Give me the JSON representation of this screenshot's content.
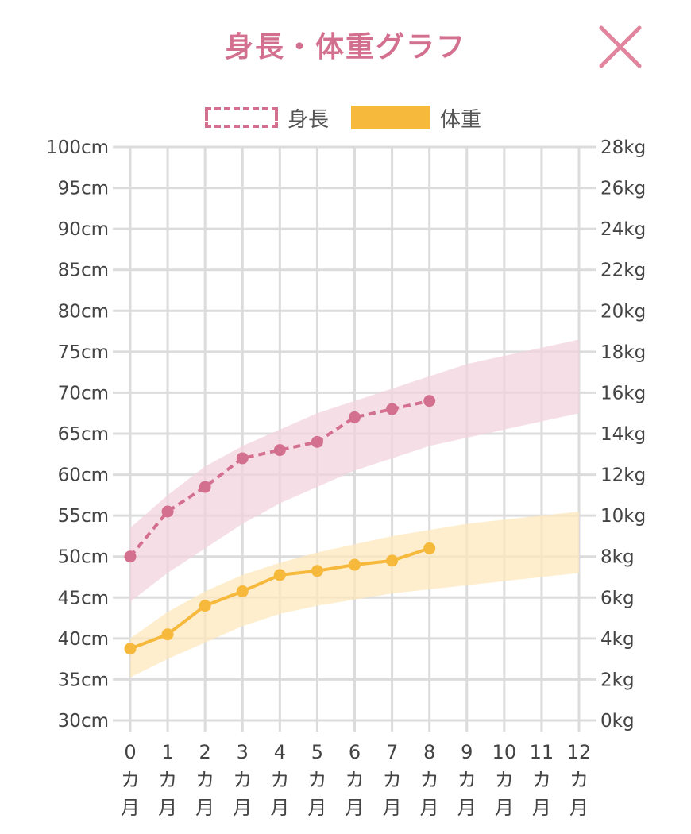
{
  "header": {
    "title": "身長・体重グラフ"
  },
  "colors": {
    "title": "#d4708f",
    "close": "#e1849d",
    "height_line": "#d4708f",
    "height_band": "#f3d3df",
    "weight_line": "#f6b93c",
    "weight_band": "#fde8bd",
    "grid": "#dcdcdc"
  },
  "legend": {
    "height_label": "身長",
    "weight_label": "体重"
  },
  "chart_data": {
    "type": "line",
    "grid": true,
    "legend_position": "top-center",
    "x": [
      0,
      1,
      2,
      3,
      4,
      5,
      6,
      7,
      8,
      9,
      10,
      11,
      12
    ],
    "x_tick_labels": [
      [
        "0",
        "カ",
        "月"
      ],
      [
        "1",
        "カ",
        "月"
      ],
      [
        "2",
        "カ",
        "月"
      ],
      [
        "3",
        "カ",
        "月"
      ],
      [
        "4",
        "カ",
        "月"
      ],
      [
        "5",
        "カ",
        "月"
      ],
      [
        "6",
        "カ",
        "月"
      ],
      [
        "7",
        "カ",
        "月"
      ],
      [
        "8",
        "カ",
        "月"
      ],
      [
        "9",
        "カ",
        "月"
      ],
      [
        "10",
        "カ",
        "月"
      ],
      [
        "11",
        "カ",
        "月"
      ],
      [
        "12",
        "カ",
        "月"
      ]
    ],
    "y_left": {
      "unit": "cm",
      "lim": [
        30,
        100
      ],
      "ticks": [
        100,
        95,
        90,
        85,
        80,
        75,
        70,
        65,
        60,
        55,
        50,
        45,
        40,
        35,
        30
      ],
      "tick_labels": [
        "100cm",
        "95cm",
        "90cm",
        "85cm",
        "80cm",
        "75cm",
        "70cm",
        "65cm",
        "60cm",
        "55cm",
        "50cm",
        "45cm",
        "40cm",
        "35cm",
        "30cm"
      ]
    },
    "y_right": {
      "unit": "kg",
      "lim": [
        0,
        28
      ],
      "ticks": [
        28,
        26,
        24,
        22,
        20,
        18,
        16,
        14,
        12,
        10,
        8,
        6,
        4,
        2,
        0
      ],
      "tick_labels": [
        "28kg",
        "26kg",
        "24kg",
        "22kg",
        "20kg",
        "18kg",
        "16kg",
        "14kg",
        "12kg",
        "10kg",
        "8kg",
        "6kg",
        "4kg",
        "2kg",
        "0kg"
      ]
    },
    "series": [
      {
        "name": "身長",
        "axis": "left",
        "style": "dashed",
        "x": [
          0,
          1,
          2,
          3,
          4,
          5,
          6,
          7,
          8
        ],
        "values": [
          50,
          55.5,
          58.5,
          62,
          63,
          64,
          67,
          68,
          69
        ]
      },
      {
        "name": "体重",
        "axis": "right",
        "style": "solid",
        "x": [
          0,
          1,
          2,
          3,
          4,
          5,
          6,
          7,
          8
        ],
        "values": [
          3.5,
          4.2,
          5.6,
          6.3,
          7.1,
          7.3,
          7.6,
          7.8,
          8.4
        ]
      }
    ],
    "bands": [
      {
        "name": "身長",
        "axis": "left",
        "x": [
          0,
          1,
          2,
          3,
          4,
          5,
          6,
          7,
          8,
          9,
          10,
          11,
          12
        ],
        "lower": [
          44.5,
          48,
          51,
          54,
          56.5,
          58.5,
          60.5,
          62,
          63.5,
          64.5,
          65.5,
          66.5,
          67.5
        ],
        "upper": [
          53.5,
          57.5,
          61,
          63.5,
          65.5,
          67.5,
          69,
          70.5,
          72,
          73.5,
          74.5,
          75.5,
          76.5
        ]
      },
      {
        "name": "体重",
        "axis": "right",
        "x": [
          0,
          1,
          2,
          3,
          4,
          5,
          6,
          7,
          8,
          9,
          10,
          11,
          12
        ],
        "lower": [
          2.1,
          3.0,
          3.8,
          4.6,
          5.2,
          5.6,
          5.9,
          6.2,
          6.4,
          6.6,
          6.8,
          7.0,
          7.2
        ],
        "upper": [
          4.0,
          5.3,
          6.3,
          7.1,
          7.7,
          8.2,
          8.6,
          9.0,
          9.3,
          9.6,
          9.8,
          10.0,
          10.2
        ]
      }
    ]
  }
}
